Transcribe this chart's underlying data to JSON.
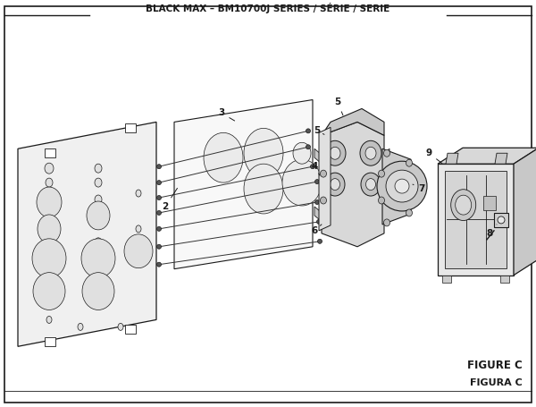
{
  "title": "BLACK MAX – BM10700J SERIES / SÉRIE / SERIE",
  "figure_label": "FIGURE C",
  "figura_label": "FIGURA C",
  "bg_color": "#ffffff",
  "line_color": "#1a1a1a",
  "title_fontsize": 7.5,
  "label_fontsize": 7.5,
  "fig_label_fontsize": 8.5
}
